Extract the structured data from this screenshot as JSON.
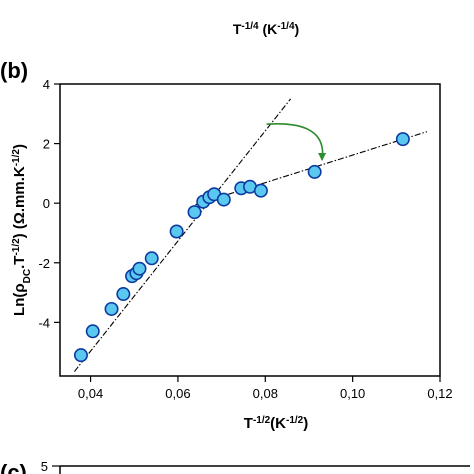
{
  "top_fragment": {
    "xlabel": "T-1/4 (K-1/4)"
  },
  "chart_data": {
    "type": "scatter",
    "panel_label": "(b)",
    "xlabel": "T-1/2(K-1/2)",
    "ylabel": "Ln(ρDC.T-1/2) (Ω.mm.K-1/2)",
    "xlim": [
      0.033,
      0.12
    ],
    "ylim": [
      -5.8,
      4
    ],
    "xticks": [
      0.04,
      0.06,
      0.08,
      0.1,
      0.12
    ],
    "xtick_labels": [
      "0,04",
      "0,06",
      "0,08",
      "0,10",
      "0,12"
    ],
    "yticks": [
      4,
      2,
      0,
      -2,
      -4
    ],
    "ytick_labels": [
      "4",
      "2",
      "0",
      "-2",
      "-4"
    ],
    "grid": false,
    "marker_fill": "#5bc8f0",
    "marker_edge": "#0d3aa0",
    "fit_line_color": "#000000",
    "arrow_color": "#2e8b2e",
    "x": [
      0.0378,
      0.0405,
      0.0448,
      0.0475,
      0.0495,
      0.0505,
      0.0512,
      0.054,
      0.0597,
      0.0638,
      0.0658,
      0.0672,
      0.0683,
      0.0705,
      0.0745,
      0.0765,
      0.079,
      0.0913,
      0.1115
    ],
    "y": [
      -5.1,
      -4.3,
      -3.55,
      -3.05,
      -2.45,
      -2.35,
      -2.2,
      -1.85,
      -0.95,
      -0.3,
      0.05,
      0.2,
      0.3,
      0.12,
      0.5,
      0.55,
      0.42,
      1.05,
      2.15
    ],
    "fit_lines": [
      {
        "x": [
          0.0363,
          0.0858
        ],
        "y": [
          -5.65,
          3.5
        ]
      },
      {
        "x": [
          0.064,
          0.117
        ],
        "y": [
          -0.05,
          2.4
        ]
      }
    ],
    "annotation_arrow": {
      "from": [
        0.0803,
        2.65
      ],
      "to": [
        0.093,
        1.45
      ]
    }
  },
  "bottom_fragment": {
    "panel_label": "(c)",
    "ytick_label": "5"
  }
}
